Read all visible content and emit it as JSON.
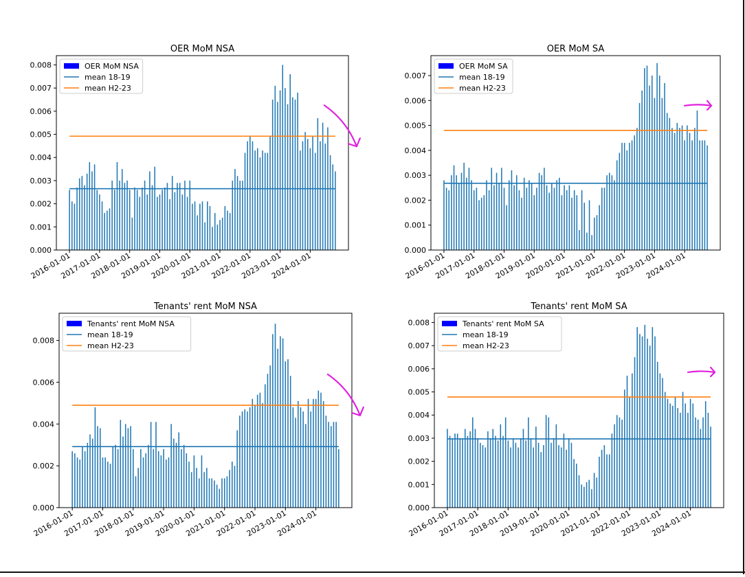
{
  "colors": {
    "bars": "#1f77b4",
    "mean_18_19": "#1f77b4",
    "mean_h2_23": "#ff7f0e",
    "legend_patch": "#0000ff",
    "annotation": "#e020e0"
  },
  "x_tick_labels": [
    "2016-01-01",
    "2017-01-01",
    "2018-01-01",
    "2019-01-01",
    "2020-01-01",
    "2021-01-01",
    "2022-01-01",
    "2023-01-01",
    "2024-01-01"
  ],
  "chart_data": [
    {
      "type": "bar",
      "title": "OER MoM NSA",
      "legend": [
        "OER MoM NSA",
        "mean 18-19",
        "mean H2-23"
      ],
      "legend_position": "top-left",
      "x_start": "2016-01",
      "x_end": "2024-06",
      "ylim": [
        0,
        0.0084
      ],
      "yticks": [
        "0.000",
        "0.001",
        "0.002",
        "0.003",
        "0.004",
        "0.005",
        "0.006",
        "0.007",
        "0.008"
      ],
      "mean_18_19": 0.00265,
      "mean_h2_23": 0.00492,
      "annotation": "down",
      "values": [
        0.0026,
        0.0021,
        0.002,
        0.0027,
        0.0031,
        0.0032,
        0.0028,
        0.0033,
        0.0038,
        0.0034,
        0.0037,
        0.0026,
        0.0024,
        0.0021,
        0.0016,
        0.0017,
        0.0018,
        0.003,
        0.0026,
        0.0038,
        0.003,
        0.0035,
        0.0029,
        0.003,
        0.0026,
        0.0014,
        0.0027,
        0.0026,
        0.0023,
        0.0027,
        0.003,
        0.0024,
        0.0034,
        0.0028,
        0.0036,
        0.0023,
        0.0024,
        0.0026,
        0.0027,
        0.0029,
        0.0022,
        0.0032,
        0.0025,
        0.0029,
        0.0029,
        0.0024,
        0.003,
        0.0023,
        0.003,
        0.002,
        0.0021,
        0.0015,
        0.002,
        0.0021,
        0.0012,
        0.0021,
        0.0019,
        0.001,
        0.0016,
        0.0011,
        0.0013,
        0.0014,
        0.0019,
        0.0017,
        0.0016,
        0.003,
        0.0035,
        0.0032,
        0.003,
        0.003,
        0.0042,
        0.0047,
        0.0049,
        0.0047,
        0.0043,
        0.0044,
        0.004,
        0.0043,
        0.0042,
        0.0042,
        0.0049,
        0.0065,
        0.0071,
        0.0064,
        0.0069,
        0.008,
        0.007,
        0.0063,
        0.0076,
        0.0066,
        0.0065,
        0.0068,
        0.0043,
        0.0047,
        0.0051,
        0.0048,
        0.0044,
        0.0049,
        0.0042,
        0.0057,
        0.0047,
        0.0055,
        0.0046,
        0.0053,
        0.0041,
        0.0037,
        0.0034
      ]
    },
    {
      "type": "bar",
      "title": "OER MoM SA",
      "legend": [
        "OER MoM SA",
        "mean 18-19",
        "mean H2-23"
      ],
      "legend_position": "top-left",
      "x_start": "2016-01",
      "x_end": "2024-06",
      "ylim": [
        0,
        0.0078
      ],
      "yticks": [
        "0.000",
        "0.001",
        "0.002",
        "0.003",
        "0.004",
        "0.005",
        "0.006",
        "0.007"
      ],
      "mean_18_19": 0.00268,
      "mean_h2_23": 0.0048,
      "annotation": "right",
      "values": [
        0.0028,
        0.0025,
        0.0024,
        0.003,
        0.0034,
        0.003,
        0.0027,
        0.0031,
        0.0035,
        0.0029,
        0.0033,
        0.0028,
        0.0024,
        0.0025,
        0.002,
        0.0021,
        0.0022,
        0.0028,
        0.0024,
        0.0033,
        0.0026,
        0.0031,
        0.0027,
        0.0033,
        0.0025,
        0.0018,
        0.0028,
        0.0032,
        0.0026,
        0.003,
        0.0024,
        0.0021,
        0.0029,
        0.0025,
        0.0028,
        0.0027,
        0.0022,
        0.0025,
        0.0031,
        0.003,
        0.0033,
        0.0026,
        0.0023,
        0.0027,
        0.0025,
        0.0028,
        0.0029,
        0.0022,
        0.0026,
        0.0024,
        0.0026,
        0.0021,
        0.0024,
        0.0022,
        0.0008,
        0.0024,
        0.0019,
        0.0007,
        0.002,
        0.0006,
        0.0013,
        0.0014,
        0.0018,
        0.0025,
        0.0025,
        0.003,
        0.0031,
        0.003,
        0.0028,
        0.0036,
        0.0039,
        0.0043,
        0.0043,
        0.004,
        0.0043,
        0.0044,
        0.0046,
        0.0049,
        0.0059,
        0.0064,
        0.0073,
        0.0074,
        0.0066,
        0.007,
        0.0061,
        0.0075,
        0.007,
        0.0061,
        0.0067,
        0.0055,
        0.0053,
        0.0049,
        0.0047,
        0.0051,
        0.0049,
        0.005,
        0.0044,
        0.005,
        0.0047,
        0.0044,
        0.0049,
        0.0056,
        0.0044,
        0.0044,
        0.0044,
        0.0042
      ]
    },
    {
      "type": "bar",
      "title": "Tenants' rent MoM NSA",
      "legend": [
        "Tenants' rent MoM NSA",
        "mean 18-19",
        "mean H2-23"
      ],
      "legend_position": "top-left",
      "x_start": "2016-01",
      "x_end": "2024-06",
      "ylim": [
        0,
        0.0093
      ],
      "yticks": [
        "0.000",
        "0.002",
        "0.004",
        "0.006",
        "0.008"
      ],
      "mean_18_19": 0.00292,
      "mean_h2_23": 0.0049,
      "annotation": "down",
      "values": [
        0.0027,
        0.0026,
        0.0024,
        0.0023,
        0.0029,
        0.0027,
        0.0031,
        0.0035,
        0.0033,
        0.0048,
        0.0039,
        0.0038,
        0.0024,
        0.0024,
        0.0022,
        0.0021,
        0.0029,
        0.003,
        0.0028,
        0.0042,
        0.0034,
        0.004,
        0.0038,
        0.0039,
        0.0028,
        0.0015,
        0.0019,
        0.0028,
        0.0024,
        0.0026,
        0.003,
        0.0041,
        0.0028,
        0.0041,
        0.0027,
        0.0025,
        0.0028,
        0.0023,
        0.0024,
        0.004,
        0.0033,
        0.0031,
        0.0036,
        0.0028,
        0.003,
        0.0026,
        0.0022,
        0.0017,
        0.0025,
        0.0019,
        0.0014,
        0.0025,
        0.0017,
        0.0019,
        0.0014,
        0.0014,
        0.0013,
        0.0011,
        0.0009,
        0.0014,
        0.0014,
        0.0015,
        0.0018,
        0.0022,
        0.002,
        0.0037,
        0.0044,
        0.0046,
        0.0047,
        0.0046,
        0.0048,
        0.0052,
        0.0049,
        0.0054,
        0.0055,
        0.005,
        0.0059,
        0.0064,
        0.0068,
        0.0083,
        0.0088,
        0.0076,
        0.0082,
        0.0081,
        0.007,
        0.0071,
        0.0063,
        0.0048,
        0.0043,
        0.0051,
        0.0048,
        0.0046,
        0.004,
        0.0052,
        0.0046,
        0.0052,
        0.0052,
        0.0056,
        0.0055,
        0.0051,
        0.0044,
        0.0041,
        0.0039,
        0.0041,
        0.0041,
        0.0028
      ]
    },
    {
      "type": "bar",
      "title": "Tenants' rent MoM SA",
      "legend": [
        "Tenants' rent MoM SA",
        "mean 18-19",
        "mean H2-23"
      ],
      "legend_position": "top-left",
      "x_start": "2016-01",
      "x_end": "2024-06",
      "ylim": [
        0,
        0.0084
      ],
      "yticks": [
        "0.000",
        "0.001",
        "0.002",
        "0.003",
        "0.004",
        "0.005",
        "0.006",
        "0.007",
        "0.008"
      ],
      "mean_18_19": 0.00297,
      "mean_h2_23": 0.00478,
      "annotation": "right",
      "values": [
        0.0034,
        0.0031,
        0.003,
        0.0032,
        0.0032,
        0.003,
        0.003,
        0.0034,
        0.0031,
        0.0033,
        0.0039,
        0.0034,
        0.003,
        0.0028,
        0.0027,
        0.0026,
        0.0033,
        0.003,
        0.0034,
        0.0031,
        0.0029,
        0.0036,
        0.0031,
        0.0039,
        0.0029,
        0.0026,
        0.003,
        0.0028,
        0.0026,
        0.003,
        0.0034,
        0.0029,
        0.0039,
        0.003,
        0.0026,
        0.0035,
        0.0028,
        0.0024,
        0.0027,
        0.004,
        0.0039,
        0.0028,
        0.003,
        0.0036,
        0.0027,
        0.0026,
        0.0032,
        0.0025,
        0.003,
        0.0028,
        0.0021,
        0.0019,
        0.0014,
        0.001,
        0.0009,
        0.0011,
        0.0012,
        0.0008,
        0.0015,
        0.0013,
        0.0022,
        0.0025,
        0.0027,
        0.0023,
        0.0023,
        0.0032,
        0.0036,
        0.004,
        0.0039,
        0.0038,
        0.0051,
        0.0057,
        0.0048,
        0.0058,
        0.0065,
        0.0078,
        0.0075,
        0.0074,
        0.0079,
        0.0073,
        0.007,
        0.0078,
        0.0074,
        0.0063,
        0.0058,
        0.0056,
        0.005,
        0.0047,
        0.0045,
        0.0044,
        0.0048,
        0.0043,
        0.0041,
        0.005,
        0.0045,
        0.0041,
        0.0047,
        0.0045,
        0.0039,
        0.0038,
        0.0034,
        0.0039,
        0.0046,
        0.0041,
        0.0035
      ]
    }
  ]
}
